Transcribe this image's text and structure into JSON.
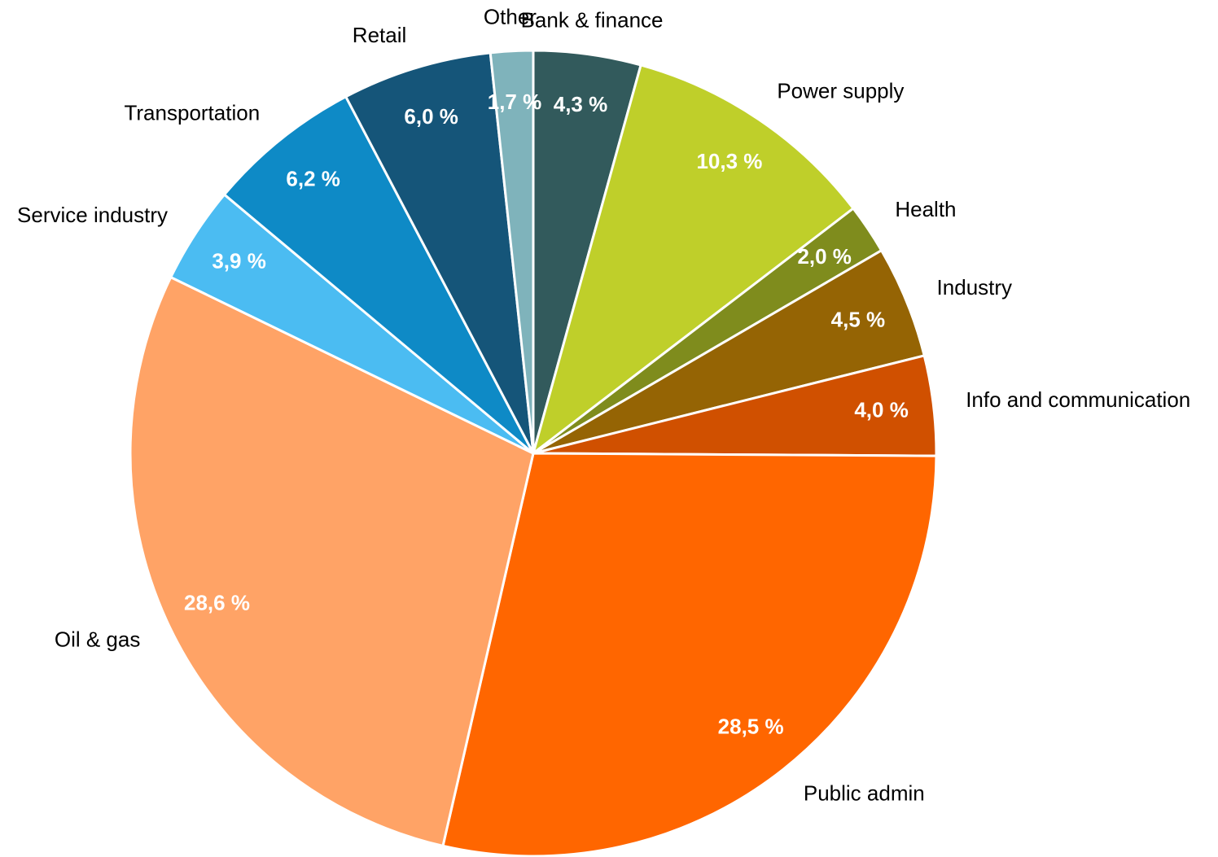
{
  "chart_data": {
    "type": "pie",
    "categories": [
      "Bank & finance",
      "Power supply",
      "Health",
      "Industry",
      "Info and communication",
      "Public admin",
      "Oil & gas",
      "Service industry",
      "Transportation",
      "Retail",
      "Other"
    ],
    "values": [
      4.3,
      10.3,
      2.0,
      4.5,
      4.0,
      28.5,
      28.6,
      3.9,
      6.2,
      6.0,
      1.7
    ],
    "value_labels": [
      "4,3 %",
      "10,3 %",
      "2,0 %",
      "4,5 %",
      "4,0 %",
      "28,5 %",
      "28,6 %",
      "3,9 %",
      "6,2 %",
      "6,0 %",
      "1,7 %"
    ],
    "colors": [
      "#325a5c",
      "#bfcf2a",
      "#7f8c1d",
      "#956404",
      "#d05000",
      "#ff6600",
      "#ffa366",
      "#4bbcf2",
      "#0e8ac6",
      "#155579",
      "#7fb3bb"
    ]
  }
}
